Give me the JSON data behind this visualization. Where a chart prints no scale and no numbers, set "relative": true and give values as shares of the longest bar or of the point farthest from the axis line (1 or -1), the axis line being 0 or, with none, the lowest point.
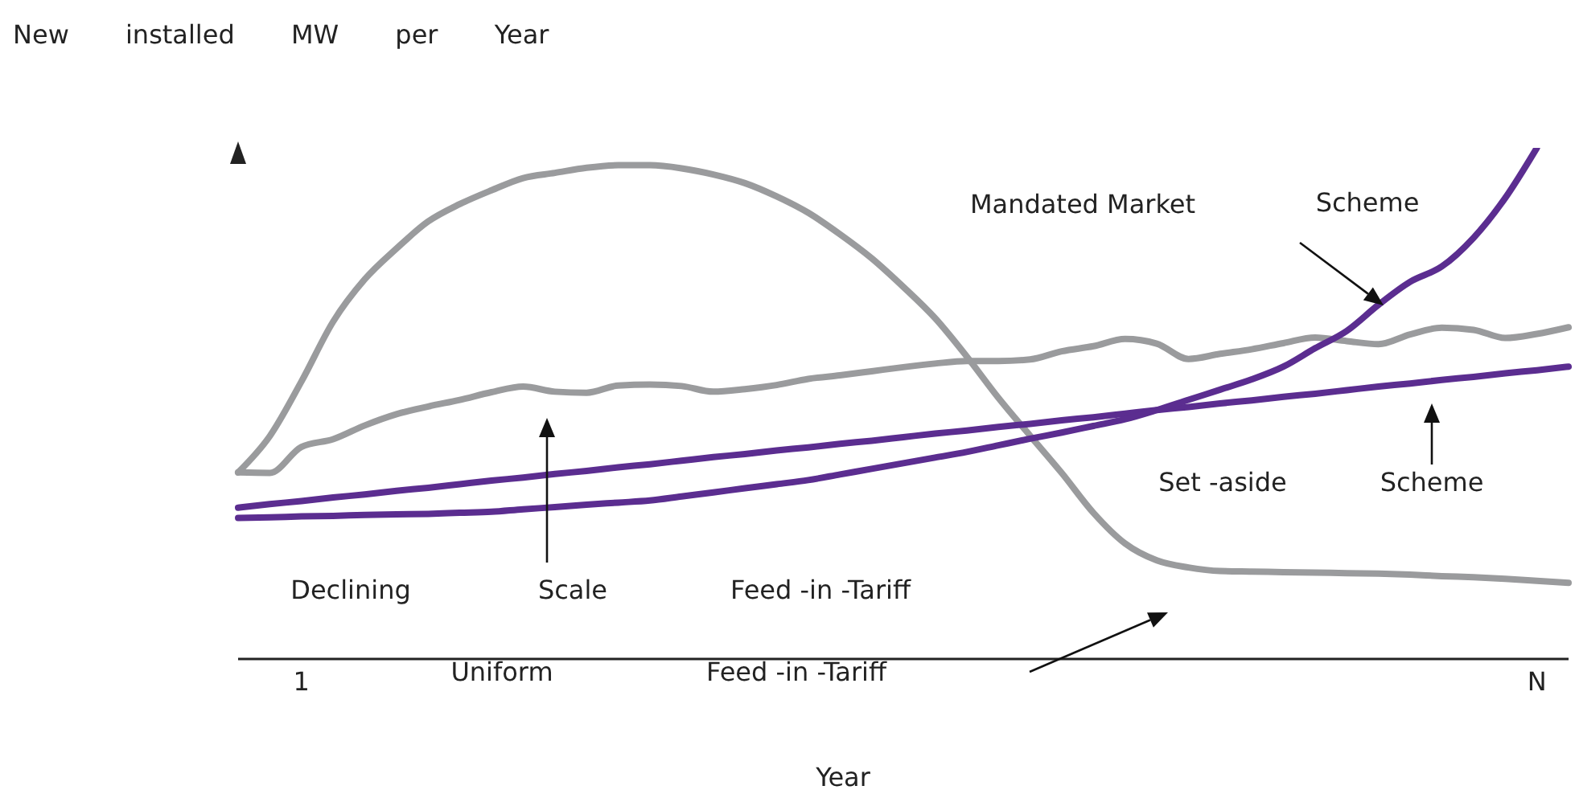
{
  "chart_data": {
    "type": "line",
    "title": "New installed MW per Year",
    "xlabel": "Year",
    "relative": true,
    "legend": false,
    "grid": false,
    "marker": "none",
    "categories": [
      null,
      null,
      "1",
      null,
      null,
      null,
      null,
      null,
      null,
      null,
      null,
      null,
      null,
      null,
      null,
      null,
      null,
      null,
      null,
      null,
      null,
      null,
      null,
      null,
      null,
      null,
      null,
      null,
      null,
      null,
      null,
      null,
      null,
      null,
      null,
      null,
      null,
      null,
      null,
      null,
      null,
      "N",
      null
    ],
    "series": [
      {
        "color": "#9a9b9d",
        "values": [
          0.365,
          0.436,
          0.543,
          0.66,
          0.743,
          0.803,
          0.856,
          0.89,
          0.917,
          0.941,
          0.951,
          0.961,
          0.966,
          0.966,
          0.96,
          0.948,
          0.931,
          0.905,
          0.873,
          0.831,
          0.784,
          0.728,
          0.667,
          0.592,
          0.511,
          0.437,
          0.364,
          0.286,
          0.226,
          0.193,
          0.179,
          0.172,
          0.171,
          0.17,
          0.169,
          0.168,
          0.167,
          0.165,
          0.162,
          0.16,
          0.157,
          0.153,
          0.149
        ]
      },
      {
        "color": "#9a9b9d",
        "values": [
          0.365,
          0.364,
          0.415,
          0.43,
          0.457,
          0.479,
          0.494,
          0.507,
          0.522,
          0.533,
          0.523,
          0.521,
          0.535,
          0.537,
          0.534,
          0.523,
          0.528,
          0.536,
          0.548,
          0.555,
          0.563,
          0.571,
          0.578,
          0.583,
          0.583,
          0.586,
          0.602,
          0.612,
          0.626,
          0.617,
          0.587,
          0.597,
          0.606,
          0.618,
          0.629,
          0.622,
          0.616,
          0.635,
          0.648,
          0.644,
          0.628,
          0.636,
          0.649
        ]
      },
      {
        "color": "#5b2d90",
        "values": [
          0.296,
          0.303,
          0.309,
          0.316,
          0.322,
          0.329,
          0.335,
          0.342,
          0.349,
          0.355,
          0.362,
          0.368,
          0.375,
          0.381,
          0.388,
          0.395,
          0.401,
          0.408,
          0.414,
          0.421,
          0.427,
          0.434,
          0.441,
          0.447,
          0.454,
          0.46,
          0.467,
          0.473,
          0.48,
          0.487,
          0.493,
          0.5,
          0.506,
          0.513,
          0.519,
          0.526,
          0.533,
          0.539,
          0.546,
          0.552,
          0.559,
          0.565,
          0.572
        ]
      },
      {
        "color": "#5b2d90",
        "values": [
          0.276,
          0.277,
          0.279,
          0.28,
          0.282,
          0.283,
          0.284,
          0.286,
          0.288,
          0.293,
          0.297,
          0.302,
          0.306,
          0.31,
          0.318,
          0.326,
          0.334,
          0.342,
          0.35,
          0.361,
          0.372,
          0.383,
          0.394,
          0.405,
          0.418,
          0.431,
          0.443,
          0.456,
          0.469,
          0.487,
          0.507,
          0.527,
          0.547,
          0.572,
          0.608,
          0.642,
          0.693,
          0.738,
          0.768,
          0.824,
          0.902,
          1,
          null
        ]
      }
    ],
    "annotations": [
      "Mandated Market",
      "Scheme",
      "Set -aside",
      "Scheme",
      "Declining",
      "Scale",
      "Feed -in -Tariff",
      "Uniform",
      "Feed -in -Tariff"
    ]
  }
}
